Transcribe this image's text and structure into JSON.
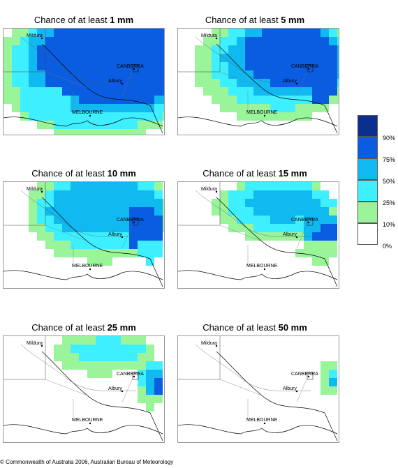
{
  "title_prefix": "Chance of at least ",
  "panels": [
    {
      "amount": "1 mm"
    },
    {
      "amount": "5 mm"
    },
    {
      "amount": "10 mm"
    },
    {
      "amount": "15 mm"
    },
    {
      "amount": "25 mm"
    },
    {
      "amount": "50 mm"
    }
  ],
  "cities": {
    "mildura": "Mildura",
    "canberra": "CANBERRA",
    "albury": "Albury",
    "melbourne": "MELBOURNE"
  },
  "legend": {
    "labels": [
      "90%",
      "75%",
      "50%",
      "25%",
      "10%",
      "0%"
    ],
    "colors": [
      "#0a2f8f",
      "#0a5de0",
      "#10b9f0",
      "#3ef0ff",
      "#9af59a",
      "#ffffff"
    ]
  },
  "copyright": "© Commonwealth of Australia 2006, Australian Bureau of Meteorology"
}
